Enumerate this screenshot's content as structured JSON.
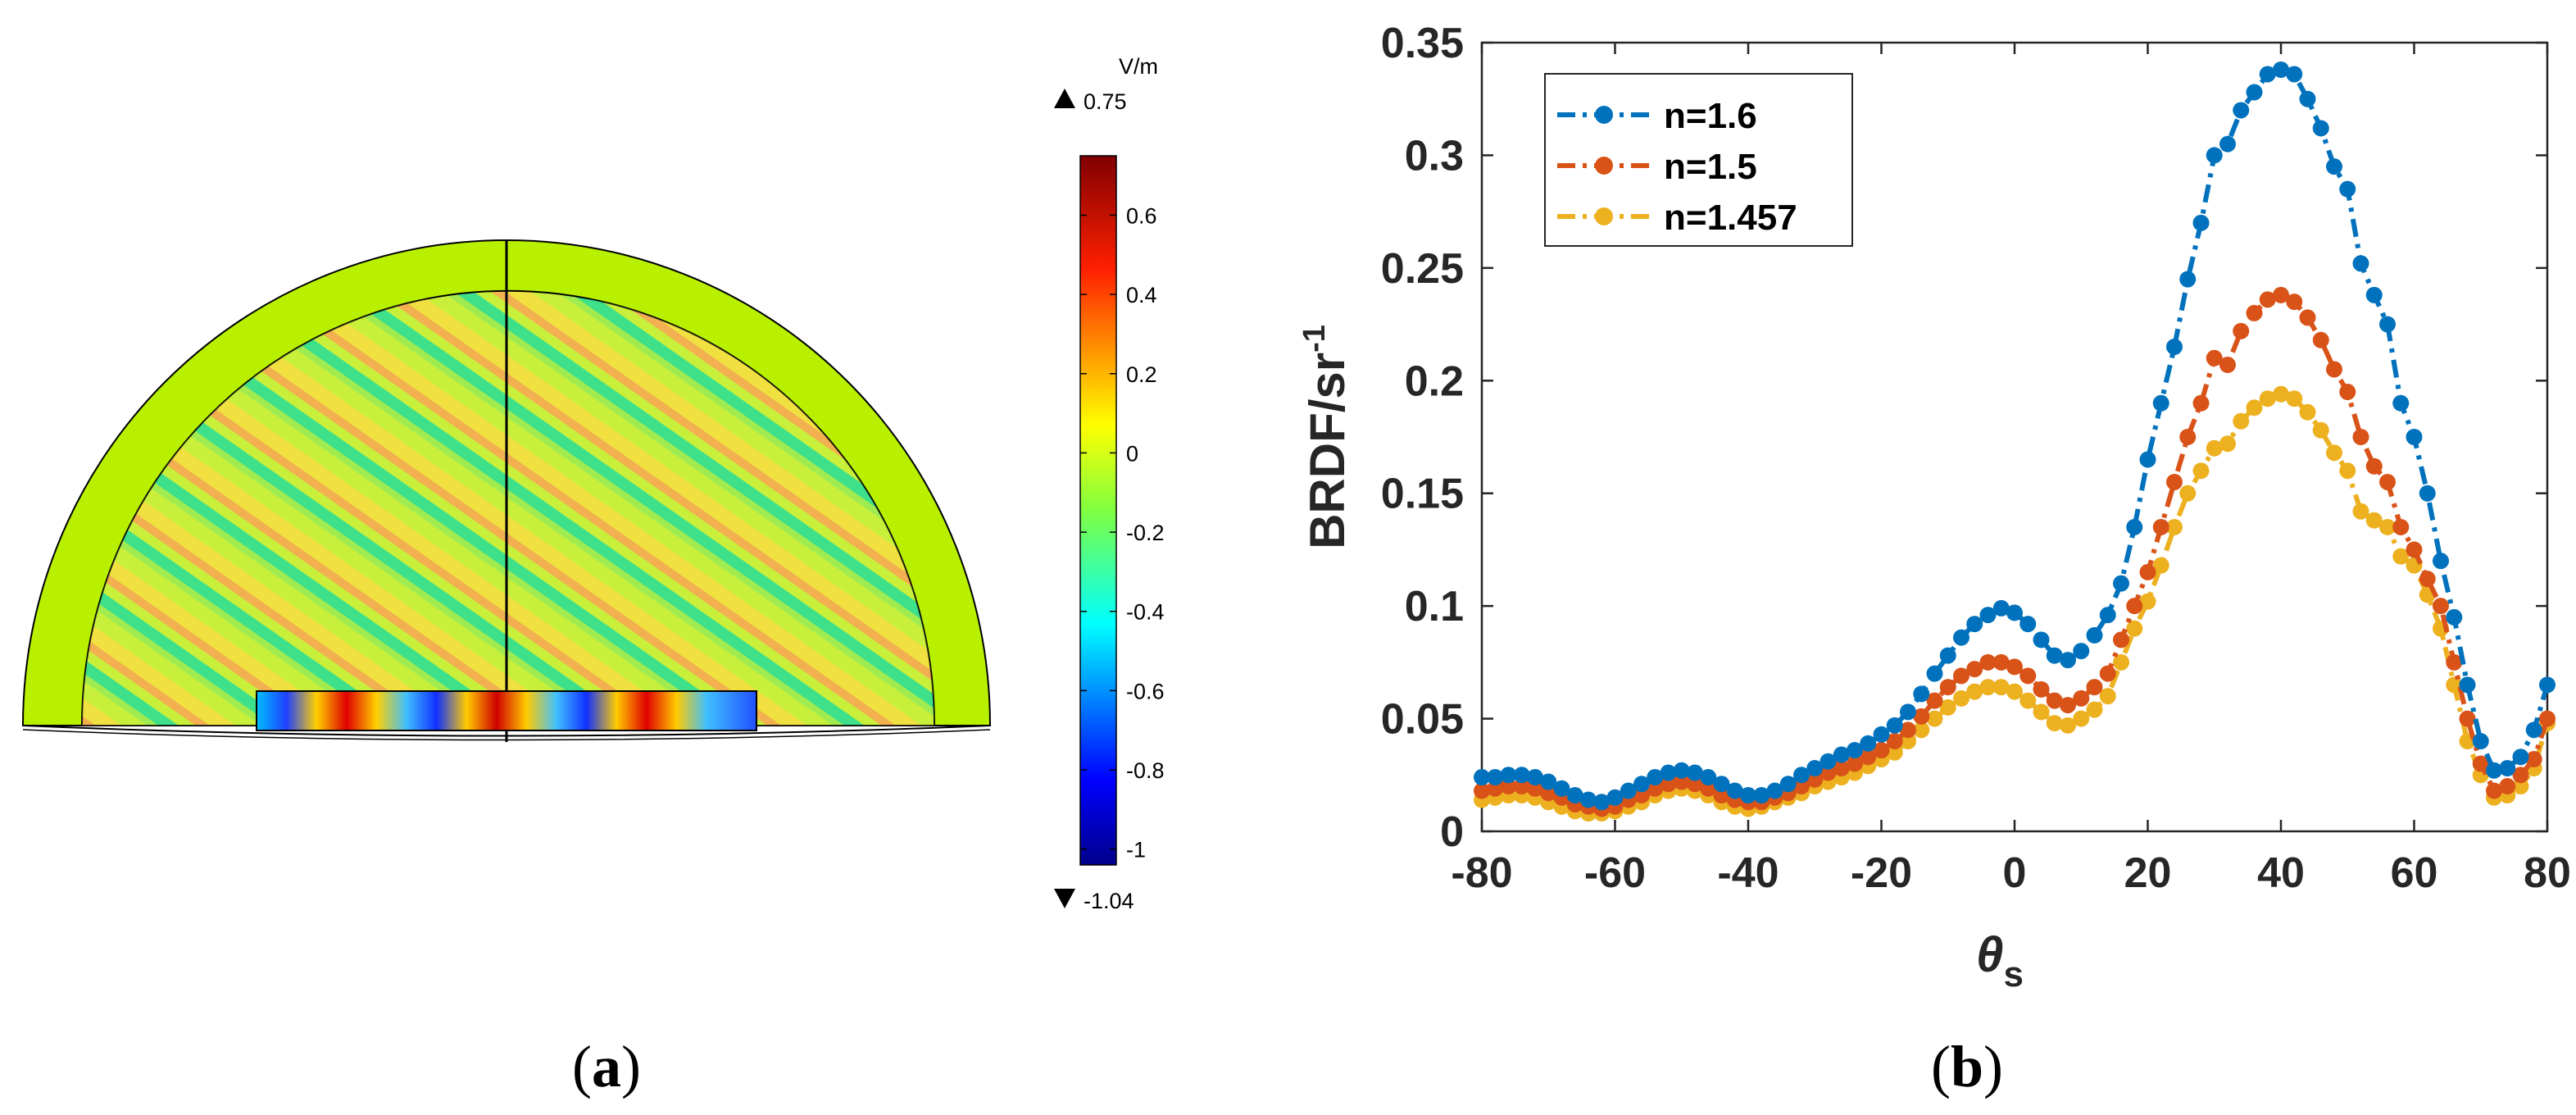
{
  "panel_a": {
    "caption": "a",
    "colorbar": {
      "unit": "V/m",
      "max_label": "0.75",
      "min_label": "-1.04",
      "max": 0.75,
      "min": -1.04,
      "ticks": [
        {
          "value": 0.6,
          "label": "0.6"
        },
        {
          "value": 0.4,
          "label": "0.4"
        },
        {
          "value": 0.2,
          "label": "0.2"
        },
        {
          "value": 0,
          "label": "0"
        },
        {
          "value": -0.2,
          "label": "-0.2"
        },
        {
          "value": -0.4,
          "label": "-0.4"
        },
        {
          "value": -0.6,
          "label": "-0.6"
        },
        {
          "value": -0.8,
          "label": "-0.8"
        },
        {
          "value": -1,
          "label": "-1"
        }
      ]
    }
  },
  "panel_b": {
    "caption": "b"
  },
  "chart_data": {
    "type": "line",
    "title": "",
    "xlabel_symbol": "θ",
    "xlabel_subscript": "s",
    "ylabel": "BRDF/sr",
    "ylabel_superscript": "-1",
    "xlim": [
      -80,
      80
    ],
    "ylim": [
      0,
      0.35
    ],
    "x_ticks": [
      {
        "value": -80,
        "label": "-80"
      },
      {
        "value": -60,
        "label": "-60"
      },
      {
        "value": -40,
        "label": "-40"
      },
      {
        "value": -20,
        "label": "-20"
      },
      {
        "value": 0,
        "label": "0"
      },
      {
        "value": 20,
        "label": "20"
      },
      {
        "value": 40,
        "label": "40"
      },
      {
        "value": 60,
        "label": "60"
      },
      {
        "value": 80,
        "label": "80"
      }
    ],
    "y_ticks": [
      {
        "value": 0,
        "label": "0"
      },
      {
        "value": 0.05,
        "label": "0.05"
      },
      {
        "value": 0.1,
        "label": "0.1"
      },
      {
        "value": 0.15,
        "label": "0.15"
      },
      {
        "value": 0.2,
        "label": "0.2"
      },
      {
        "value": 0.25,
        "label": "0.25"
      },
      {
        "value": 0.3,
        "label": "0.3"
      },
      {
        "value": 0.35,
        "label": "0.35"
      }
    ],
    "legend_position": "top-left",
    "x": [
      -80,
      -78,
      -76,
      -74,
      -72,
      -70,
      -68,
      -66,
      -64,
      -62,
      -60,
      -58,
      -56,
      -54,
      -52,
      -50,
      -48,
      -46,
      -44,
      -42,
      -40,
      -38,
      -36,
      -34,
      -32,
      -30,
      -28,
      -26,
      -24,
      -22,
      -20,
      -18,
      -16,
      -14,
      -12,
      -10,
      -8,
      -6,
      -4,
      -2,
      0,
      2,
      4,
      6,
      8,
      10,
      12,
      14,
      16,
      18,
      20,
      22,
      24,
      26,
      28,
      30,
      32,
      34,
      36,
      38,
      40,
      42,
      44,
      46,
      48,
      50,
      52,
      54,
      56,
      58,
      60,
      62,
      64,
      66,
      68,
      70,
      72,
      74,
      76,
      78,
      80
    ],
    "series": [
      {
        "name": "n=1.6",
        "color": "#0072BD",
        "values": [
          0.024,
          0.024,
          0.025,
          0.025,
          0.024,
          0.022,
          0.019,
          0.016,
          0.014,
          0.013,
          0.015,
          0.018,
          0.021,
          0.024,
          0.026,
          0.027,
          0.026,
          0.024,
          0.021,
          0.018,
          0.016,
          0.016,
          0.018,
          0.021,
          0.025,
          0.028,
          0.031,
          0.034,
          0.036,
          0.039,
          0.043,
          0.047,
          0.053,
          0.061,
          0.07,
          0.078,
          0.086,
          0.092,
          0.096,
          0.099,
          0.097,
          0.092,
          0.085,
          0.078,
          0.076,
          0.08,
          0.087,
          0.096,
          0.11,
          0.135,
          0.165,
          0.19,
          0.215,
          0.245,
          0.27,
          0.3,
          0.305,
          0.32,
          0.328,
          0.336,
          0.338,
          0.336,
          0.325,
          0.312,
          0.295,
          0.285,
          0.252,
          0.238,
          0.225,
          0.19,
          0.175,
          0.15,
          0.12,
          0.095,
          0.065,
          0.04,
          0.027,
          0.028,
          0.033,
          0.045,
          0.065
        ]
      },
      {
        "name": "n=1.5",
        "color": "#D95319",
        "values": [
          0.018,
          0.019,
          0.02,
          0.02,
          0.019,
          0.017,
          0.015,
          0.012,
          0.011,
          0.01,
          0.011,
          0.014,
          0.016,
          0.019,
          0.021,
          0.022,
          0.021,
          0.019,
          0.016,
          0.014,
          0.013,
          0.013,
          0.015,
          0.017,
          0.02,
          0.023,
          0.026,
          0.028,
          0.03,
          0.033,
          0.036,
          0.04,
          0.045,
          0.051,
          0.058,
          0.064,
          0.069,
          0.072,
          0.075,
          0.075,
          0.073,
          0.069,
          0.063,
          0.058,
          0.056,
          0.059,
          0.064,
          0.07,
          0.085,
          0.1,
          0.115,
          0.135,
          0.155,
          0.175,
          0.19,
          0.21,
          0.207,
          0.222,
          0.23,
          0.236,
          0.238,
          0.235,
          0.228,
          0.218,
          0.205,
          0.195,
          0.175,
          0.162,
          0.155,
          0.135,
          0.125,
          0.112,
          0.1,
          0.075,
          0.05,
          0.03,
          0.018,
          0.02,
          0.025,
          0.032,
          0.05
        ]
      },
      {
        "name": "n=1.457",
        "color": "#EDB120",
        "values": [
          0.014,
          0.015,
          0.016,
          0.016,
          0.015,
          0.013,
          0.011,
          0.009,
          0.008,
          0.008,
          0.009,
          0.011,
          0.013,
          0.016,
          0.018,
          0.019,
          0.018,
          0.016,
          0.013,
          0.011,
          0.01,
          0.011,
          0.013,
          0.015,
          0.017,
          0.02,
          0.022,
          0.024,
          0.026,
          0.029,
          0.032,
          0.035,
          0.04,
          0.045,
          0.05,
          0.055,
          0.059,
          0.062,
          0.064,
          0.064,
          0.062,
          0.058,
          0.053,
          0.048,
          0.047,
          0.05,
          0.054,
          0.06,
          0.075,
          0.09,
          0.102,
          0.118,
          0.135,
          0.15,
          0.16,
          0.17,
          0.172,
          0.182,
          0.188,
          0.192,
          0.194,
          0.192,
          0.186,
          0.178,
          0.168,
          0.16,
          0.142,
          0.138,
          0.135,
          0.122,
          0.118,
          0.105,
          0.09,
          0.065,
          0.04,
          0.025,
          0.015,
          0.016,
          0.02,
          0.028,
          0.048
        ]
      }
    ]
  }
}
